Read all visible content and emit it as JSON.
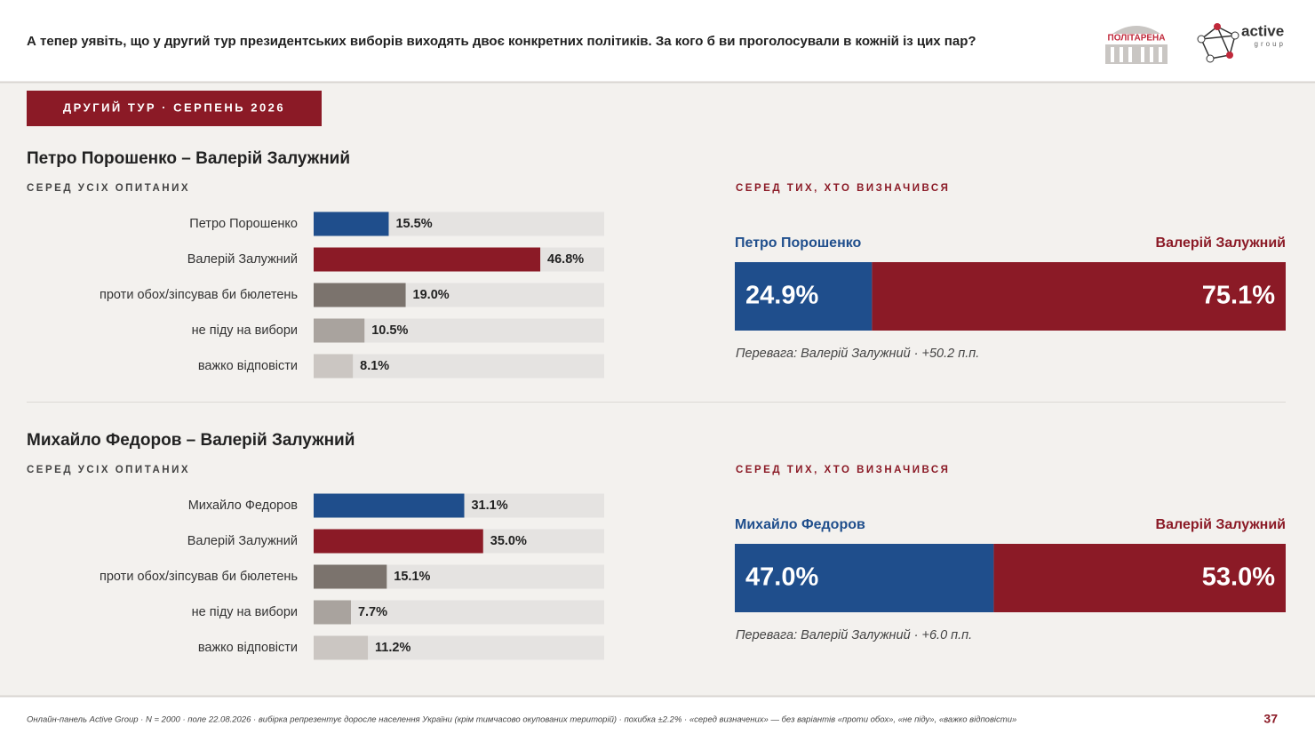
{
  "header": {
    "question": "А тепер уявіть, що у другий тур президентських виборів виходять двоє конкретних політиків. За кого б ви проголосували в кожній із цих пар?",
    "logo_left": "ПОЛІТАРЕНА",
    "logo_right": "active",
    "logo_right_sub": "group"
  },
  "badge": "ДРУГИЙ ТУР · СЕРПЕНЬ 2026",
  "chart_data": [
    {
      "type": "hbar",
      "title": "Петро Порошенко – Валерій Залужний",
      "subtitle": "СЕРЕД УСІХ ОПИТАНИХ",
      "categories": [
        "Петро Порошенко",
        "Валерій Залужний",
        "проти обох/зіпсував би бюлетень",
        "не піду на вибори",
        "важко відповісти"
      ],
      "values": [
        15.5,
        46.8,
        19.0,
        10.5,
        8.1
      ],
      "value_labels": [
        "15.5%",
        "46.8%",
        "19.0%",
        "10.5%",
        "8.1%"
      ],
      "colors": [
        "#1f4e8c",
        "#8b1a26",
        "#7b736d",
        "#a9a39e",
        "#cbc6c2"
      ],
      "xlim": [
        0,
        60
      ]
    },
    {
      "type": "split",
      "subtitle": "СЕРЕД ТИХ, ХТО ВИЗНАЧИВСЯ",
      "xlim": [
        0,
        100
      ],
      "series": [
        {
          "name": "Петро Порошенко",
          "color": "#1f4e8c",
          "values": [
            24.9
          ],
          "value_labels": [
            "24.9%"
          ]
        },
        {
          "name": "Валерій Залужний",
          "color": "#8b1a26",
          "values": [
            75.1
          ],
          "value_labels": [
            "75.1%"
          ]
        }
      ],
      "note": "Перевага: Валерій Залужний · +50.2 п.п."
    },
    {
      "type": "hbar",
      "title": "Михайло Федоров – Валерій Залужний",
      "subtitle": "СЕРЕД УСІХ ОПИТАНИХ",
      "categories": [
        "Михайло Федоров",
        "Валерій Залужний",
        "проти обох/зіпсував би бюлетень",
        "не піду на вибори",
        "важко відповісти"
      ],
      "values": [
        31.1,
        35.0,
        15.1,
        7.7,
        11.2
      ],
      "value_labels": [
        "31.1%",
        "35.0%",
        "15.1%",
        "7.7%",
        "11.2%"
      ],
      "colors": [
        "#1f4e8c",
        "#8b1a26",
        "#7b736d",
        "#a9a39e",
        "#cbc6c2"
      ],
      "xlim": [
        0,
        60
      ]
    },
    {
      "type": "split",
      "subtitle": "СЕРЕД ТИХ, ХТО ВИЗНАЧИВСЯ",
      "xlim": [
        0,
        100
      ],
      "series": [
        {
          "name": "Михайло Федоров",
          "color": "#1f4e8c",
          "values": [
            47.0
          ],
          "value_labels": [
            "47.0%"
          ]
        },
        {
          "name": "Валерій Залужний",
          "color": "#8b1a26",
          "values": [
            53.0
          ],
          "value_labels": [
            "53.0%"
          ]
        }
      ],
      "note": "Перевага: Валерій Залужний · +6.0 п.п."
    }
  ],
  "footer": {
    "note": "Онлайн-панель Active Group · N = 2000 · поле 22.08.2026 · вибірка репрезентує доросле населення України (крім тимчасово окупованих територій) · похибка ±2.2% · «серед визначених» — без варіантів «проти обох», «не піду», «важко відповісти»",
    "page": "37"
  }
}
